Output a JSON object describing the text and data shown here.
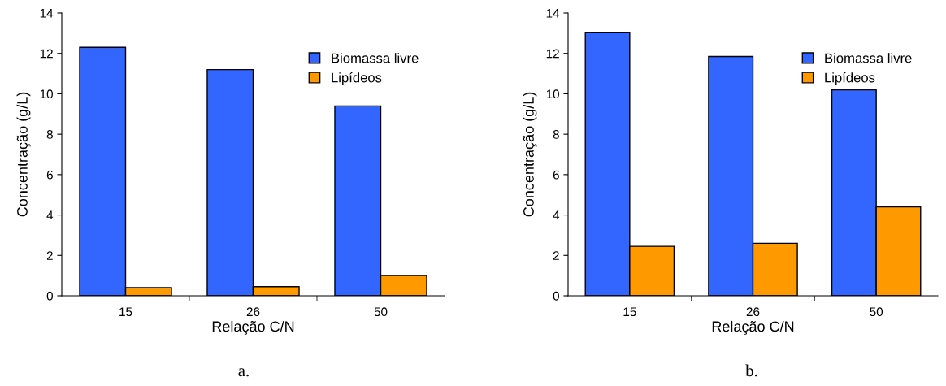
{
  "chart_data": [
    {
      "type": "bar",
      "categories": [
        "15",
        "26",
        "50"
      ],
      "xlabel": "Relação C/N",
      "ylabel": "Concentração (g/L)",
      "ylim": [
        0,
        14
      ],
      "yticks": [
        0,
        2,
        4,
        6,
        8,
        10,
        12,
        14
      ],
      "legend": "top right",
      "grid": false,
      "annotations": [
        "a."
      ],
      "series": [
        {
          "name": "Biomassa livre",
          "color": "#3366ff",
          "values": [
            12.3,
            11.2,
            9.4
          ]
        },
        {
          "name": "Lipídeos",
          "color": "#ff9900",
          "values": [
            0.4,
            0.45,
            1.0
          ]
        }
      ]
    },
    {
      "type": "bar",
      "categories": [
        "15",
        "26",
        "50"
      ],
      "xlabel": "Relação C/N",
      "ylabel": "Concentração (g/L)",
      "ylim": [
        0,
        14
      ],
      "yticks": [
        0,
        2,
        4,
        6,
        8,
        10,
        12,
        14
      ],
      "legend": "top right",
      "grid": false,
      "annotations": [
        "b."
      ],
      "series": [
        {
          "name": "Biomassa livre",
          "color": "#3366ff",
          "values": [
            13.05,
            11.85,
            10.2
          ]
        },
        {
          "name": "Lipídeos",
          "color": "#ff9900",
          "values": [
            2.45,
            2.6,
            4.4
          ]
        }
      ]
    }
  ]
}
